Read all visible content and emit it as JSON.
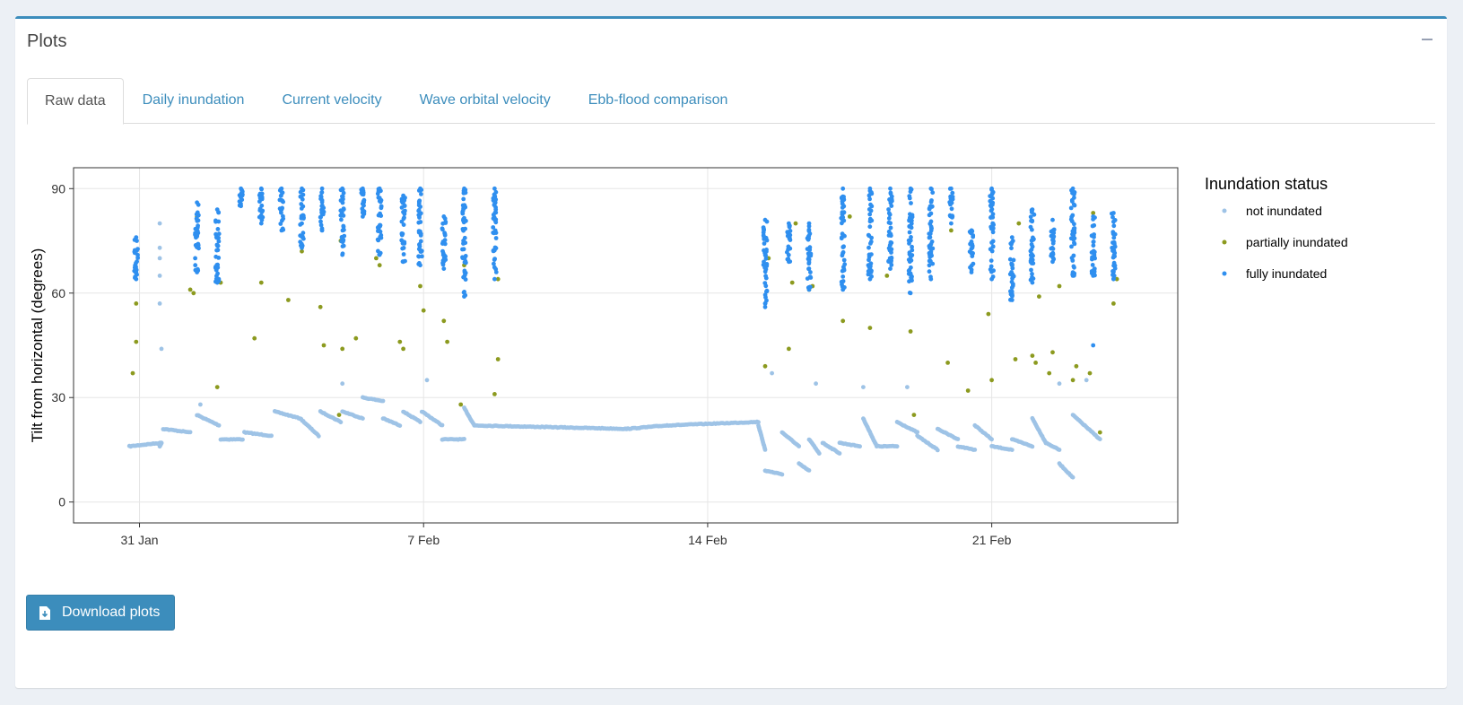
{
  "panel": {
    "title": "Plots"
  },
  "tabs": [
    {
      "label": "Raw data",
      "active": true
    },
    {
      "label": "Daily inundation",
      "active": false
    },
    {
      "label": "Current velocity",
      "active": false
    },
    {
      "label": "Wave orbital velocity",
      "active": false
    },
    {
      "label": "Ebb-flood comparison",
      "active": false
    }
  ],
  "download_button": {
    "label": "Download plots",
    "icon": "file-download-icon"
  },
  "chart_data": {
    "type": "scatter",
    "ylabel": "Tilt from horizontal (degrees)",
    "xlabel": "",
    "x_axis": "date",
    "ylim": [
      -6,
      96
    ],
    "xlim": [
      "2023-01-29 09:00",
      "2023-02-25 14:00"
    ],
    "yticks": [
      0,
      30,
      60,
      90
    ],
    "xticks": [
      {
        "label": "31 Jan",
        "date": "2023-01-31 00:00"
      },
      {
        "label": "7 Feb",
        "date": "2023-02-07 00:00"
      },
      {
        "label": "14 Feb",
        "date": "2023-02-14 00:00"
      },
      {
        "label": "21 Feb",
        "date": "2023-02-21 00:00"
      }
    ],
    "grid": true,
    "legend": {
      "title": "Inundation status",
      "position": "right"
    },
    "series": [
      {
        "name": "not inundated",
        "color": "#9ec3e6",
        "baseline_segments": [
          [
            "2023-01-30 18:00",
            16,
            "2023-01-31 13:00",
            17
          ],
          [
            "2023-01-31 13:00",
            17,
            "2023-01-31 12:00",
            16
          ],
          [
            "2023-01-31 14:00",
            21,
            "2023-02-01 06:00",
            20
          ],
          [
            "2023-02-01 10:00",
            25,
            "2023-02-01 23:00",
            22
          ],
          [
            "2023-02-02 00:00",
            18,
            "2023-02-02 13:00",
            18
          ],
          [
            "2023-02-02 14:00",
            20,
            "2023-02-03 06:00",
            19
          ],
          [
            "2023-02-03 08:00",
            26,
            "2023-02-03 23:00",
            24
          ],
          [
            "2023-02-03 23:00",
            24,
            "2023-02-04 10:00",
            19
          ],
          [
            "2023-02-04 11:00",
            26,
            "2023-02-04 23:00",
            23
          ],
          [
            "2023-02-05 00:00",
            26,
            "2023-02-05 12:00",
            24
          ],
          [
            "2023-02-05 12:00",
            30,
            "2023-02-06 00:00",
            29
          ],
          [
            "2023-02-06 00:00",
            24,
            "2023-02-06 10:00",
            22
          ],
          [
            "2023-02-06 12:00",
            26,
            "2023-02-06 22:00",
            23
          ],
          [
            "2023-02-06 23:00",
            26,
            "2023-02-07 11:00",
            22
          ],
          [
            "2023-02-07 11:00",
            18,
            "2023-02-08 00:00",
            18
          ],
          [
            "2023-02-08 00:00",
            27,
            "2023-02-08 06:00",
            22
          ],
          [
            "2023-02-08 06:00",
            22,
            "2023-02-12 00:00",
            21
          ],
          [
            "2023-02-12 00:00",
            21,
            "2023-02-13 00:00",
            22
          ],
          [
            "2023-02-13 00:00",
            22,
            "2023-02-15 06:00",
            23
          ],
          [
            "2023-02-15 06:00",
            22,
            "2023-02-15 10:00",
            15
          ],
          [
            "2023-02-15 10:00",
            9,
            "2023-02-15 20:00",
            8
          ],
          [
            "2023-02-15 20:00",
            20,
            "2023-02-16 06:00",
            16
          ],
          [
            "2023-02-16 06:00",
            11,
            "2023-02-16 12:00",
            9
          ],
          [
            "2023-02-16 12:00",
            18,
            "2023-02-16 18:00",
            14
          ],
          [
            "2023-02-16 20:00",
            17,
            "2023-02-17 06:00",
            14
          ],
          [
            "2023-02-17 06:00",
            17,
            "2023-02-17 18:00",
            16
          ],
          [
            "2023-02-17 20:00",
            24,
            "2023-02-18 04:00",
            16
          ],
          [
            "2023-02-18 04:00",
            16,
            "2023-02-18 16:00",
            16
          ],
          [
            "2023-02-18 16:00",
            23,
            "2023-02-19 04:00",
            20
          ],
          [
            "2023-02-19 04:00",
            19,
            "2023-02-19 16:00",
            15
          ],
          [
            "2023-02-19 16:00",
            21,
            "2023-02-20 04:00",
            18
          ],
          [
            "2023-02-20 04:00",
            16,
            "2023-02-20 14:00",
            15
          ],
          [
            "2023-02-20 14:00",
            22,
            "2023-02-21 00:00",
            18
          ],
          [
            "2023-02-21 00:00",
            16,
            "2023-02-21 12:00",
            15
          ],
          [
            "2023-02-21 12:00",
            18,
            "2023-02-22 00:00",
            16
          ],
          [
            "2023-02-22 00:00",
            24,
            "2023-02-22 08:00",
            17
          ],
          [
            "2023-02-22 08:00",
            17,
            "2023-02-22 16:00",
            15
          ],
          [
            "2023-02-22 16:00",
            11,
            "2023-02-23 00:00",
            7
          ],
          [
            "2023-02-23 00:00",
            25,
            "2023-02-23 16:00",
            18
          ]
        ],
        "outliers": [
          [
            "2023-01-31 12:00",
            80
          ],
          [
            "2023-01-31 12:00",
            73
          ],
          [
            "2023-01-31 12:00",
            70
          ],
          [
            "2023-01-31 12:00",
            65
          ],
          [
            "2023-01-31 12:00",
            57
          ],
          [
            "2023-01-31 13:00",
            44
          ],
          [
            "2023-02-01 12:00",
            28
          ],
          [
            "2023-02-05 00:00",
            34
          ],
          [
            "2023-02-07 02:00",
            35
          ],
          [
            "2023-02-15 14:00",
            37
          ],
          [
            "2023-02-16 16:00",
            34
          ],
          [
            "2023-02-17 20:00",
            33
          ],
          [
            "2023-02-18 22:00",
            33
          ],
          [
            "2023-02-22 16:00",
            34
          ],
          [
            "2023-02-23 08:00",
            35
          ]
        ]
      },
      {
        "name": "partially inundated",
        "color": "#8c9a1f",
        "points": [
          [
            "2023-01-30 20:00",
            37
          ],
          [
            "2023-01-30 22:00",
            46
          ],
          [
            "2023-01-30 22:00",
            57
          ],
          [
            "2023-02-01 06:00",
            61
          ],
          [
            "2023-02-01 08:00",
            60
          ],
          [
            "2023-02-01 10:00",
            82
          ],
          [
            "2023-02-01 22:00",
            33
          ],
          [
            "2023-02-02 00:00",
            63
          ],
          [
            "2023-02-02 20:00",
            47
          ],
          [
            "2023-02-03 00:00",
            63
          ],
          [
            "2023-02-03 16:00",
            58
          ],
          [
            "2023-02-04 00:00",
            72
          ],
          [
            "2023-02-04 11:00",
            56
          ],
          [
            "2023-02-04 13:00",
            45
          ],
          [
            "2023-02-04 22:00",
            25
          ],
          [
            "2023-02-04 23:00",
            75
          ],
          [
            "2023-02-05 00:00",
            44
          ],
          [
            "2023-02-05 08:00",
            47
          ],
          [
            "2023-02-05 20:00",
            70
          ],
          [
            "2023-02-05 22:00",
            68
          ],
          [
            "2023-02-06 10:00",
            46
          ],
          [
            "2023-02-06 12:00",
            44
          ],
          [
            "2023-02-06 22:00",
            62
          ],
          [
            "2023-02-07 00:00",
            55
          ],
          [
            "2023-02-07 12:00",
            52
          ],
          [
            "2023-02-07 14:00",
            46
          ],
          [
            "2023-02-07 22:00",
            28
          ],
          [
            "2023-02-08 00:00",
            68
          ],
          [
            "2023-02-08 18:00",
            31
          ],
          [
            "2023-02-08 20:00",
            41
          ],
          [
            "2023-02-08 20:00",
            64
          ],
          [
            "2023-02-15 10:00",
            39
          ],
          [
            "2023-02-15 12:00",
            70
          ],
          [
            "2023-02-16 00:00",
            44
          ],
          [
            "2023-02-16 02:00",
            63
          ],
          [
            "2023-02-16 04:00",
            80
          ],
          [
            "2023-02-16 12:00",
            61
          ],
          [
            "2023-02-16 14:00",
            62
          ],
          [
            "2023-02-17 08:00",
            52
          ],
          [
            "2023-02-17 12:00",
            82
          ],
          [
            "2023-02-18 00:00",
            50
          ],
          [
            "2023-02-18 10:00",
            65
          ],
          [
            "2023-02-19 00:00",
            49
          ],
          [
            "2023-02-19 02:00",
            25
          ],
          [
            "2023-02-19 12:00",
            73
          ],
          [
            "2023-02-19 22:00",
            40
          ],
          [
            "2023-02-20 00:00",
            78
          ],
          [
            "2023-02-20 10:00",
            32
          ],
          [
            "2023-02-20 22:00",
            54
          ],
          [
            "2023-02-21 00:00",
            35
          ],
          [
            "2023-02-21 12:00",
            68
          ],
          [
            "2023-02-21 14:00",
            41
          ],
          [
            "2023-02-21 16:00",
            80
          ],
          [
            "2023-02-22 00:00",
            42
          ],
          [
            "2023-02-22 02:00",
            40
          ],
          [
            "2023-02-22 04:00",
            59
          ],
          [
            "2023-02-22 10:00",
            37
          ],
          [
            "2023-02-22 12:00",
            43
          ],
          [
            "2023-02-22 16:00",
            62
          ],
          [
            "2023-02-23 00:00",
            35
          ],
          [
            "2023-02-23 02:00",
            39
          ],
          [
            "2023-02-23 10:00",
            37
          ],
          [
            "2023-02-23 12:00",
            83
          ],
          [
            "2023-02-23 16:00",
            20
          ],
          [
            "2023-02-24 00:00",
            57
          ],
          [
            "2023-02-24 02:00",
            64
          ]
        ]
      },
      {
        "name": "fully inundated",
        "color": "#2f8fef",
        "clusters": [
          {
            "x": "2023-01-30 22:00",
            "ymin": 64,
            "ymax": 76
          },
          {
            "x": "2023-02-01 10:00",
            "ymin": 66,
            "ymax": 86
          },
          {
            "x": "2023-02-01 22:00",
            "ymin": 63,
            "ymax": 84
          },
          {
            "x": "2023-02-02 12:00",
            "ymin": 85,
            "ymax": 90
          },
          {
            "x": "2023-02-03 00:00",
            "ymin": 80,
            "ymax": 90
          },
          {
            "x": "2023-02-03 12:00",
            "ymin": 78,
            "ymax": 90
          },
          {
            "x": "2023-02-04 00:00",
            "ymin": 73,
            "ymax": 90
          },
          {
            "x": "2023-02-04 12:00",
            "ymin": 78,
            "ymax": 90
          },
          {
            "x": "2023-02-05 00:00",
            "ymin": 71,
            "ymax": 90
          },
          {
            "x": "2023-02-05 12:00",
            "ymin": 82,
            "ymax": 90
          },
          {
            "x": "2023-02-05 22:00",
            "ymin": 71,
            "ymax": 90
          },
          {
            "x": "2023-02-06 12:00",
            "ymin": 69,
            "ymax": 88
          },
          {
            "x": "2023-02-06 22:00",
            "ymin": 68,
            "ymax": 90
          },
          {
            "x": "2023-02-07 12:00",
            "ymin": 67,
            "ymax": 82
          },
          {
            "x": "2023-02-08 00:00",
            "ymin": 59,
            "ymax": 90
          },
          {
            "x": "2023-02-08 18:00",
            "ymin": 64,
            "ymax": 90
          },
          {
            "x": "2023-02-15 10:00",
            "ymin": 57,
            "ymax": 81
          },
          {
            "x": "2023-02-16 00:00",
            "ymin": 69,
            "ymax": 80
          },
          {
            "x": "2023-02-16 12:00",
            "ymin": 61,
            "ymax": 80
          },
          {
            "x": "2023-02-17 08:00",
            "ymin": 61,
            "ymax": 90
          },
          {
            "x": "2023-02-18 00:00",
            "ymin": 64,
            "ymax": 90
          },
          {
            "x": "2023-02-18 12:00",
            "ymin": 67,
            "ymax": 90
          },
          {
            "x": "2023-02-19 00:00",
            "ymin": 60,
            "ymax": 90
          },
          {
            "x": "2023-02-19 12:00",
            "ymin": 64,
            "ymax": 90
          },
          {
            "x": "2023-02-20 00:00",
            "ymin": 80,
            "ymax": 90
          },
          {
            "x": "2023-02-20 12:00",
            "ymin": 66,
            "ymax": 78
          },
          {
            "x": "2023-02-21 00:00",
            "ymin": 64,
            "ymax": 90
          },
          {
            "x": "2023-02-21 12:00",
            "ymin": 58,
            "ymax": 76
          },
          {
            "x": "2023-02-22 00:00",
            "ymin": 63,
            "ymax": 84
          },
          {
            "x": "2023-02-22 12:00",
            "ymin": 69,
            "ymax": 81
          },
          {
            "x": "2023-02-23 00:00",
            "ymin": 65,
            "ymax": 90
          },
          {
            "x": "2023-02-23 12:00",
            "ymin": 65,
            "ymax": 82
          },
          {
            "x": "2023-02-24 00:00",
            "ymin": 64,
            "ymax": 83
          }
        ],
        "outliers": [
          [
            "2023-02-23 12:00",
            45
          ],
          [
            "2023-02-15 10:00",
            56
          ]
        ]
      }
    ]
  }
}
